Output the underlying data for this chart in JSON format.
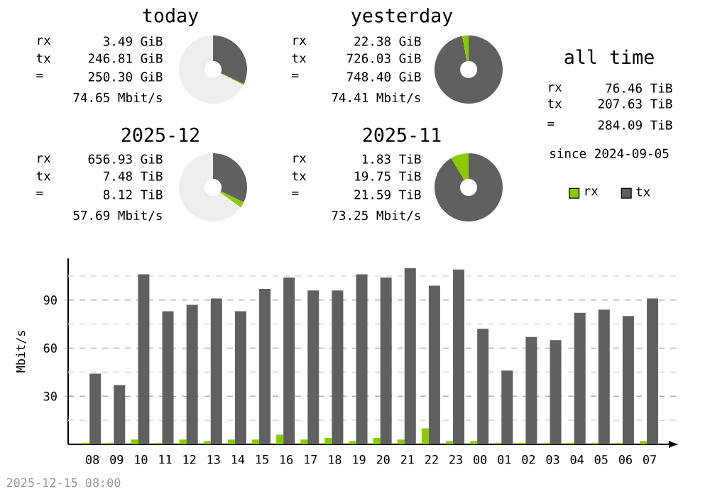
{
  "chart_data": [
    {
      "type": "donut",
      "title": "today",
      "categories": [
        null,
        null,
        null
      ],
      "values": [
        32.0,
        0.5,
        67.5
      ],
      "colors": [
        "#606060",
        "#88cc00",
        "#eeeeee"
      ],
      "annotations": [
        "rx",
        "3.49 GiB",
        "tx",
        "246.81 GiB",
        "=",
        "250.30 GiB",
        "74.65 Mbit/s"
      ]
    },
    {
      "type": "donut",
      "title": "yesterday",
      "categories": [
        null,
        null
      ],
      "values": [
        97.0,
        3.0
      ],
      "colors": [
        "#606060",
        "#88cc00"
      ],
      "annotations": [
        "rx",
        "22.38 GiB",
        "tx",
        "726.03 GiB",
        "=",
        "748.40 GiB",
        "74.41 Mbit/s"
      ]
    },
    {
      "type": "other",
      "title": "all time",
      "annotations": [
        "rx",
        "76.46 TiB",
        "tx",
        "207.63 TiB",
        "=",
        "284.09 TiB",
        "since 2024-09-05"
      ]
    },
    {
      "type": "donut",
      "title": "2025-12",
      "categories": [
        null,
        null,
        null
      ],
      "values": [
        32.2,
        2.8,
        65.0
      ],
      "colors": [
        "#606060",
        "#88cc00",
        "#eeeeee"
      ],
      "annotations": [
        "rx",
        "656.93 GiB",
        "tx",
        "7.48 TiB",
        "=",
        "8.12 TiB",
        "57.69 Mbit/s"
      ]
    },
    {
      "type": "donut",
      "title": "2025-11",
      "categories": [
        null,
        null
      ],
      "values": [
        91.5,
        8.5
      ],
      "colors": [
        "#606060",
        "#88cc00"
      ],
      "annotations": [
        "rx",
        "1.83 TiB",
        "tx",
        "19.75 TiB",
        "=",
        "21.59 TiB",
        "73.25 Mbit/s"
      ]
    },
    {
      "type": "bar",
      "ylabel": "Mbit/s",
      "categories": [
        "08",
        "09",
        "10",
        "11",
        "12",
        "13",
        "14",
        "15",
        "16",
        "17",
        "18",
        "19",
        "20",
        "21",
        "22",
        "23",
        "00",
        "01",
        "02",
        "03",
        "04",
        "05",
        "06",
        "07"
      ],
      "series": [
        {
          "name": "rx",
          "color": "#88cc00",
          "values": [
            1,
            1,
            3,
            1,
            3,
            2,
            3,
            3,
            6,
            3,
            4,
            2,
            4,
            3,
            10,
            2,
            2,
            1,
            1,
            1,
            1,
            1,
            1,
            2
          ]
        },
        {
          "name": "tx",
          "color": "#606060",
          "values": [
            44,
            37,
            106,
            83,
            87,
            91,
            83,
            97,
            104,
            96,
            96,
            106,
            104,
            110,
            99,
            109,
            72,
            46,
            67,
            65,
            82,
            84,
            80,
            91
          ]
        }
      ],
      "ylim": [
        0,
        116
      ],
      "yticks": [
        {
          "value": 15,
          "label": null
        },
        30,
        {
          "value": 45,
          "label": null
        },
        60,
        {
          "value": 75,
          "label": null
        },
        90,
        {
          "value": 105,
          "label": null
        }
      ],
      "grid": "y",
      "legend": "top right",
      "annotations": [
        "2025-12-15 08:00"
      ]
    }
  ]
}
